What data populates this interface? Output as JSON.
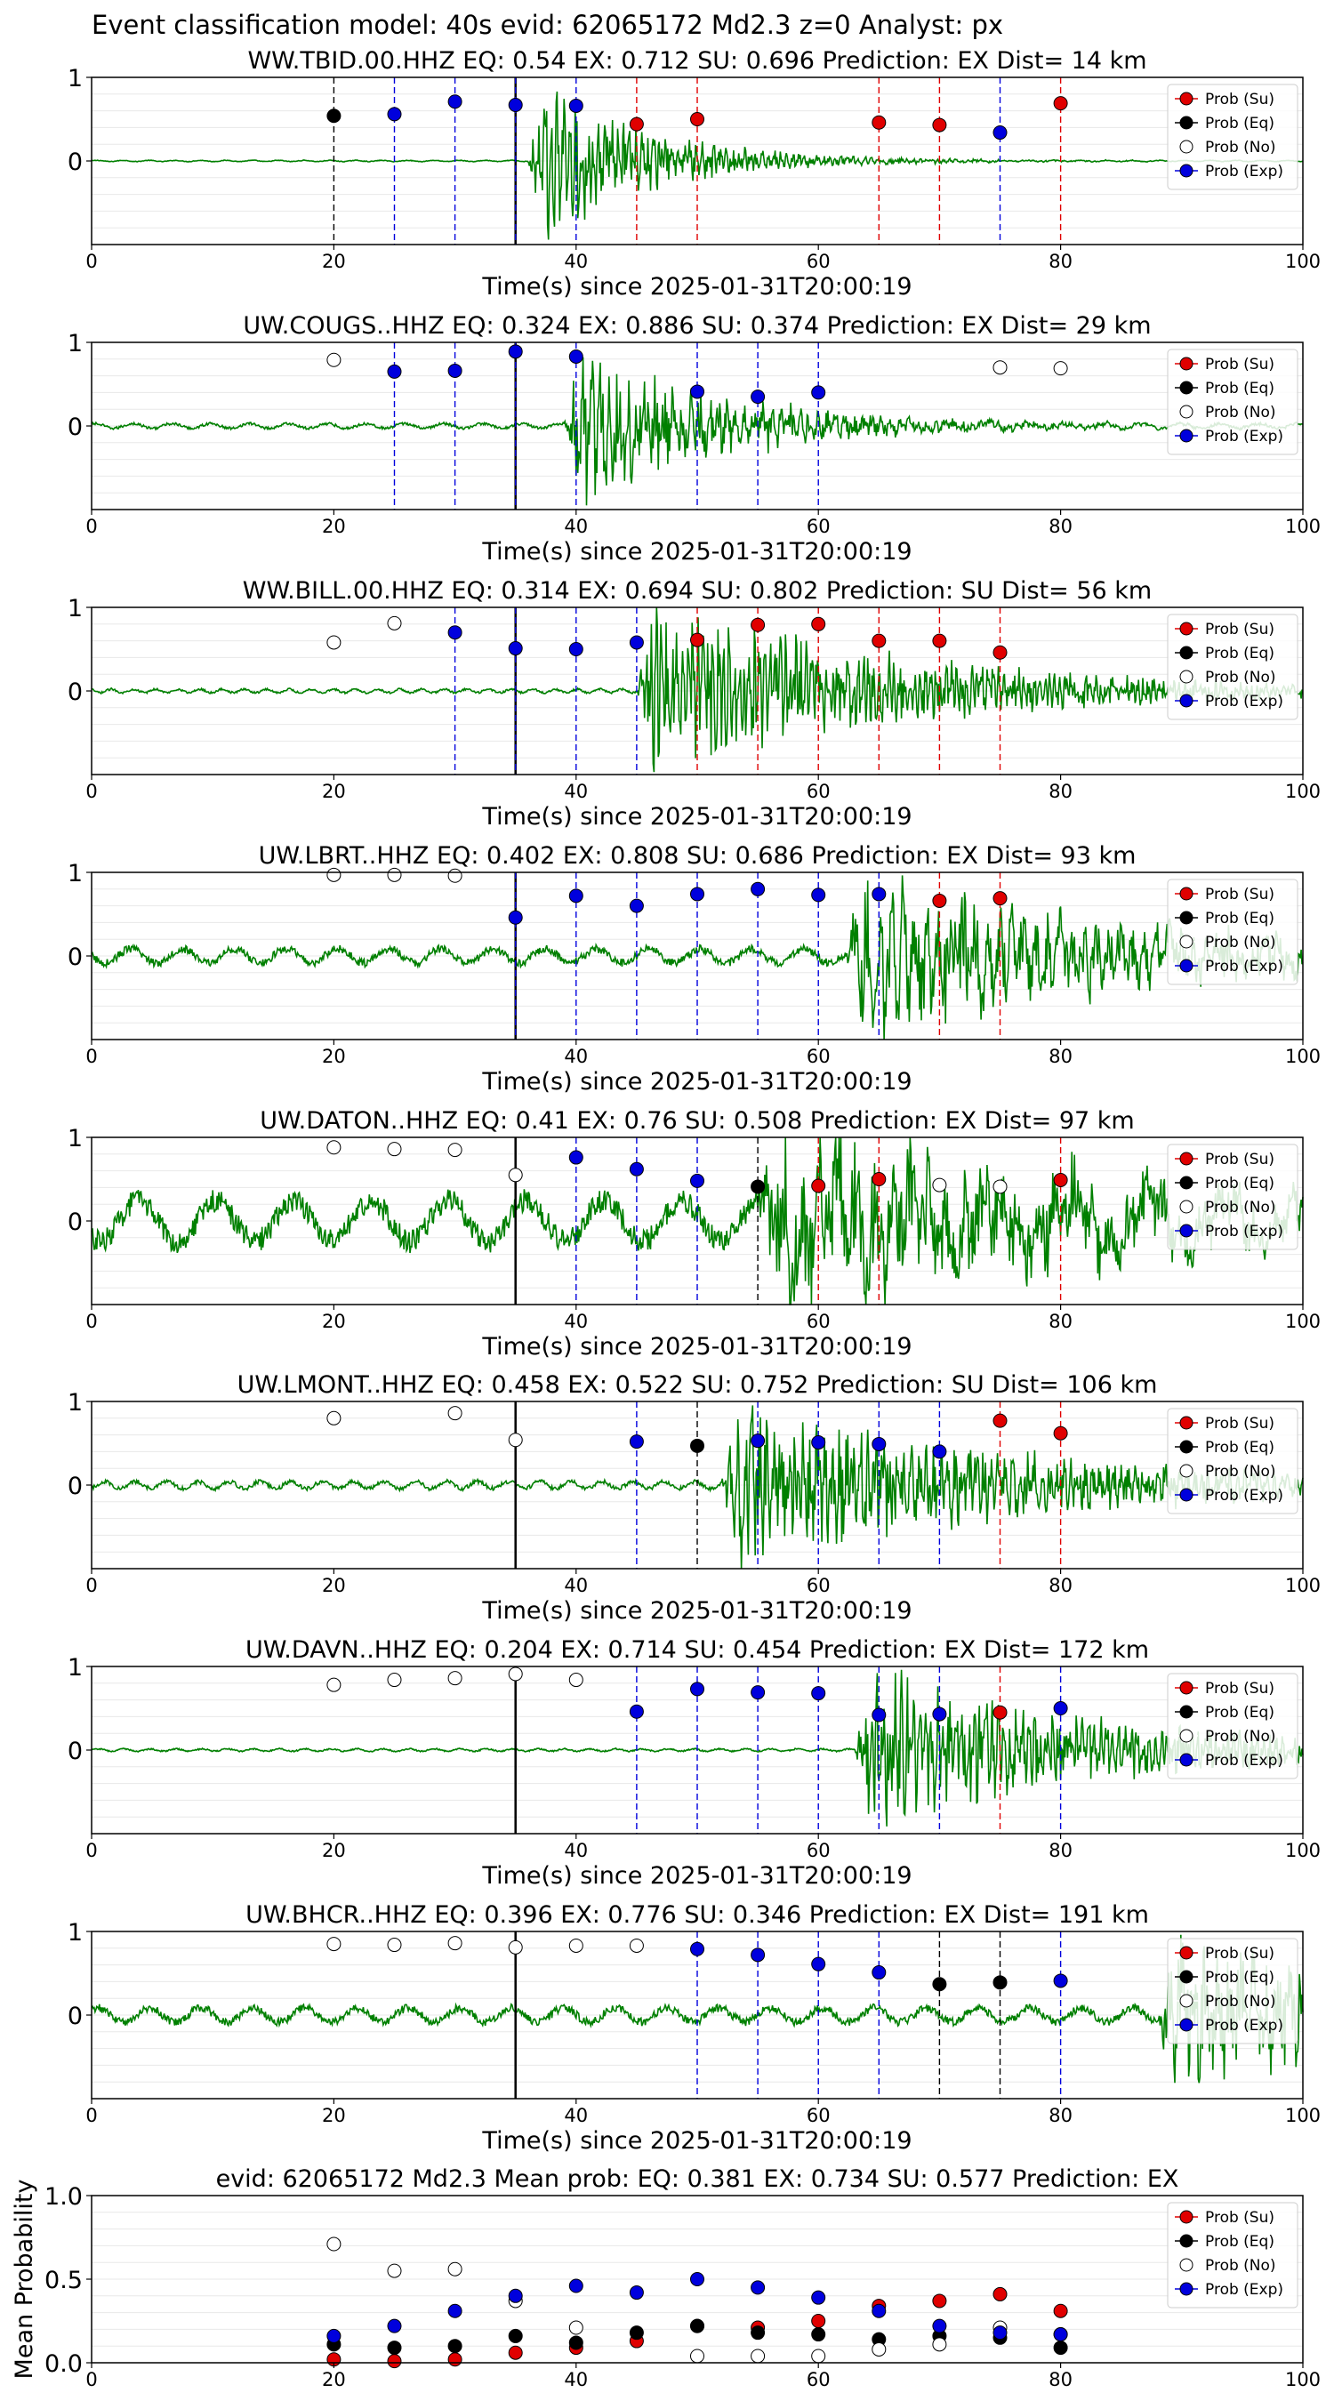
{
  "suptitle": "Event classification model: 40s evid: 62065172 Md2.3 z=0 Analyst: px",
  "legend_labels": [
    "Prob (Su)",
    "Prob (Eq)",
    "Prob (No)",
    "Prob (Exp)"
  ],
  "colors": {
    "su": "#e00000",
    "eq": "#000000",
    "no": "#ffffff",
    "exp": "#0000dd",
    "trace": "#008000"
  },
  "chart_data": [
    {
      "type": "scatter",
      "title": "WW.TBID.00.HHZ   EQ: 0.54  EX: 0.712  SU: 0.696   Prediction: EX    Dist= 14 km",
      "xlabel": "Time(s) since 2025-01-31T20:00:19",
      "ylabel": "",
      "xlim": [
        0,
        100
      ],
      "ylim": [
        -1,
        1
      ],
      "xticks": [
        "0",
        "20",
        "40",
        "60",
        "80",
        "100"
      ],
      "yticks": [
        "1",
        "0"
      ],
      "grid": true,
      "legend": "top-right",
      "trace": {
        "onset": 36,
        "noise": 0.01,
        "amp": 0.95,
        "decay": 9,
        "freq": 6
      },
      "picks": [
        [
          20,
          "eq",
          0.54
        ],
        [
          25,
          "exp",
          0.56
        ],
        [
          30,
          "exp",
          0.71
        ],
        [
          35,
          "exp",
          0.67
        ],
        [
          40,
          "exp",
          0.66
        ],
        [
          45,
          "su",
          0.44
        ],
        [
          50,
          "su",
          0.5
        ],
        [
          65,
          "su",
          0.46
        ],
        [
          70,
          "su",
          0.43
        ],
        [
          75,
          "exp",
          0.34
        ],
        [
          80,
          "su",
          0.69
        ]
      ]
    },
    {
      "type": "scatter",
      "title": "UW.COUGS..HHZ   EQ: 0.324  EX: 0.886  SU: 0.374   Prediction: EX    Dist= 29 km",
      "xlabel": "Time(s) since 2025-01-31T20:00:19",
      "ylabel": "",
      "xlim": [
        0,
        100
      ],
      "ylim": [
        -1,
        1
      ],
      "xticks": [
        "0",
        "20",
        "40",
        "60",
        "80",
        "100"
      ],
      "yticks": [
        "1",
        "0"
      ],
      "grid": true,
      "legend": "top-right",
      "trace": {
        "onset": 39,
        "noise": 0.04,
        "amp": 0.95,
        "decay": 12,
        "freq": 4
      },
      "picks": [
        [
          20,
          "no",
          0.79
        ],
        [
          25,
          "exp",
          0.65
        ],
        [
          30,
          "exp",
          0.66
        ],
        [
          35,
          "exp",
          0.89
        ],
        [
          40,
          "exp",
          0.83
        ],
        [
          50,
          "exp",
          0.41
        ],
        [
          55,
          "exp",
          0.35
        ],
        [
          60,
          "exp",
          0.4
        ],
        [
          75,
          "no",
          0.7
        ],
        [
          80,
          "no",
          0.69
        ]
      ]
    },
    {
      "type": "scatter",
      "title": "WW.BILL.00.HHZ   EQ: 0.314  EX: 0.694  SU: 0.802   Prediction: SU    Dist= 56 km",
      "xlabel": "Time(s) since 2025-01-31T20:00:19",
      "ylabel": "",
      "xlim": [
        0,
        100
      ],
      "ylim": [
        -1,
        1
      ],
      "xticks": [
        "0",
        "20",
        "40",
        "60",
        "80",
        "100"
      ],
      "yticks": [
        "1",
        "0"
      ],
      "grid": true,
      "legend": "top-right",
      "trace": {
        "onset": 45,
        "noise": 0.03,
        "amp": 0.95,
        "decay": 22,
        "freq": 7
      },
      "picks": [
        [
          20,
          "no",
          0.58
        ],
        [
          25,
          "no",
          0.81
        ],
        [
          30,
          "exp",
          0.7
        ],
        [
          35,
          "exp",
          0.51
        ],
        [
          40,
          "exp",
          0.5
        ],
        [
          45,
          "exp",
          0.58
        ],
        [
          50,
          "su",
          0.61
        ],
        [
          55,
          "su",
          0.79
        ],
        [
          60,
          "su",
          0.8
        ],
        [
          65,
          "su",
          0.6
        ],
        [
          70,
          "su",
          0.6
        ],
        [
          75,
          "su",
          0.46
        ]
      ]
    },
    {
      "type": "scatter",
      "title": "UW.LBRT..HHZ   EQ: 0.402  EX: 0.808  SU: 0.686   Prediction: EX    Dist= 93 km",
      "xlabel": "Time(s) since 2025-01-31T20:00:19",
      "ylabel": "",
      "xlim": [
        0,
        100
      ],
      "ylim": [
        -1,
        1
      ],
      "xticks": [
        "0",
        "20",
        "40",
        "60",
        "80",
        "100"
      ],
      "yticks": [
        "1",
        "0"
      ],
      "grid": true,
      "legend": "top-right",
      "trace": {
        "onset": 62,
        "noise": 0.12,
        "amp": 0.9,
        "decay": 25,
        "freq": 3
      },
      "picks": [
        [
          20,
          "no",
          0.97
        ],
        [
          25,
          "no",
          0.97
        ],
        [
          30,
          "no",
          0.96
        ],
        [
          35,
          "exp",
          0.46
        ],
        [
          40,
          "exp",
          0.72
        ],
        [
          45,
          "exp",
          0.6
        ],
        [
          50,
          "exp",
          0.74
        ],
        [
          55,
          "exp",
          0.8
        ],
        [
          60,
          "exp",
          0.73
        ],
        [
          65,
          "exp",
          0.74
        ],
        [
          70,
          "su",
          0.66
        ],
        [
          75,
          "su",
          0.69
        ]
      ]
    },
    {
      "type": "scatter",
      "title": "UW.DATON..HHZ   EQ: 0.41  EX: 0.76  SU: 0.508   Prediction: EX    Dist= 97 km",
      "xlabel": "Time(s) since 2025-01-31T20:00:19",
      "ylabel": "",
      "xlim": [
        0,
        100
      ],
      "ylim": [
        -1,
        1
      ],
      "xticks": [
        "0",
        "20",
        "40",
        "60",
        "80",
        "100"
      ],
      "yticks": [
        "1",
        "0"
      ],
      "grid": true,
      "legend": "top-right",
      "trace": {
        "onset": 55,
        "noise": 0.35,
        "amp": 0.95,
        "decay": 30,
        "freq": 2
      },
      "picks": [
        [
          20,
          "no",
          0.88
        ],
        [
          25,
          "no",
          0.86
        ],
        [
          30,
          "no",
          0.85
        ],
        [
          35,
          "no",
          0.55
        ],
        [
          40,
          "exp",
          0.76
        ],
        [
          45,
          "exp",
          0.62
        ],
        [
          50,
          "exp",
          0.48
        ],
        [
          55,
          "eq",
          0.41
        ],
        [
          60,
          "su",
          0.42
        ],
        [
          65,
          "su",
          0.5
        ],
        [
          70,
          "no",
          0.43
        ],
        [
          75,
          "no",
          0.41
        ],
        [
          80,
          "su",
          0.49
        ]
      ]
    },
    {
      "type": "scatter",
      "title": "UW.LMONT..HHZ   EQ: 0.458  EX: 0.522  SU: 0.752   Prediction: SU    Dist= 106 km",
      "xlabel": "Time(s) since 2025-01-31T20:00:19",
      "ylabel": "",
      "xlim": [
        0,
        100
      ],
      "ylim": [
        -1,
        1
      ],
      "xticks": [
        "0",
        "20",
        "40",
        "60",
        "80",
        "100"
      ],
      "yticks": [
        "1",
        "0"
      ],
      "grid": true,
      "legend": "top-right",
      "trace": {
        "onset": 52,
        "noise": 0.06,
        "amp": 0.9,
        "decay": 25,
        "freq": 5
      },
      "picks": [
        [
          20,
          "no",
          0.8
        ],
        [
          30,
          "no",
          0.86
        ],
        [
          35,
          "no",
          0.54
        ],
        [
          45,
          "exp",
          0.52
        ],
        [
          50,
          "eq",
          0.47
        ],
        [
          55,
          "exp",
          0.53
        ],
        [
          60,
          "exp",
          0.51
        ],
        [
          65,
          "exp",
          0.49
        ],
        [
          70,
          "exp",
          0.4
        ],
        [
          75,
          "su",
          0.77
        ],
        [
          80,
          "su",
          0.62
        ]
      ]
    },
    {
      "type": "scatter",
      "title": "UW.DAVN..HHZ   EQ: 0.204  EX: 0.714  SU: 0.454   Prediction: EX    Dist= 172 km",
      "xlabel": "Time(s) since 2025-01-31T20:00:19",
      "ylabel": "",
      "xlim": [
        0,
        100
      ],
      "ylim": [
        -1,
        1
      ],
      "xticks": [
        "0",
        "20",
        "40",
        "60",
        "80",
        "100"
      ],
      "yticks": [
        "1",
        "0"
      ],
      "grid": true,
      "legend": "top-right",
      "trace": {
        "onset": 63,
        "noise": 0.02,
        "amp": 0.9,
        "decay": 20,
        "freq": 6
      },
      "picks": [
        [
          20,
          "no",
          0.78
        ],
        [
          25,
          "no",
          0.84
        ],
        [
          30,
          "no",
          0.86
        ],
        [
          35,
          "no",
          0.91
        ],
        [
          40,
          "no",
          0.84
        ],
        [
          45,
          "exp",
          0.46
        ],
        [
          50,
          "exp",
          0.73
        ],
        [
          55,
          "exp",
          0.69
        ],
        [
          60,
          "exp",
          0.68
        ],
        [
          65,
          "exp",
          0.42
        ],
        [
          70,
          "exp",
          0.43
        ],
        [
          75,
          "su",
          0.45
        ],
        [
          80,
          "exp",
          0.5
        ]
      ]
    },
    {
      "type": "scatter",
      "title": "UW.BHCR..HHZ   EQ: 0.396  EX: 0.776  SU: 0.346   Prediction: EX    Dist= 191 km",
      "xlabel": "Time(s) since 2025-01-31T20:00:19",
      "ylabel": "",
      "xlim": [
        0,
        100
      ],
      "ylim": [
        -1,
        1
      ],
      "xticks": [
        "0",
        "20",
        "40",
        "60",
        "80",
        "100"
      ],
      "yticks": [
        "1",
        "0"
      ],
      "grid": true,
      "legend": "top-right",
      "trace": {
        "onset": 88,
        "noise": 0.12,
        "amp": 0.9,
        "decay": 20,
        "freq": 3
      },
      "picks": [
        [
          20,
          "no",
          0.85
        ],
        [
          25,
          "no",
          0.84
        ],
        [
          30,
          "no",
          0.86
        ],
        [
          35,
          "no",
          0.81
        ],
        [
          40,
          "no",
          0.83
        ],
        [
          45,
          "no",
          0.83
        ],
        [
          50,
          "exp",
          0.79
        ],
        [
          55,
          "exp",
          0.72
        ],
        [
          60,
          "exp",
          0.61
        ],
        [
          65,
          "exp",
          0.51
        ],
        [
          70,
          "eq",
          0.37
        ],
        [
          75,
          "eq",
          0.39
        ],
        [
          80,
          "exp",
          0.41
        ]
      ]
    },
    {
      "type": "scatter",
      "title": "evid: 62065172  Md2.3   Mean prob:    EQ: 0.381  EX: 0.734  SU: 0.577   Prediction: EX",
      "xlabel": "",
      "ylabel": "Mean Probability",
      "xlim": [
        0,
        100
      ],
      "ylim": [
        0,
        1
      ],
      "xticks": [
        "0",
        "20",
        "40",
        "60",
        "80",
        "100"
      ],
      "yticks": [
        "1.0",
        "0.5",
        "0.0"
      ],
      "grid": true,
      "legend": "top-right",
      "x": [
        20,
        25,
        30,
        35,
        40,
        45,
        50,
        55,
        60,
        65,
        70,
        75,
        80
      ],
      "series": [
        {
          "name": "Prob (Su)",
          "key": "su",
          "values": [
            0.02,
            0.01,
            0.02,
            0.06,
            0.09,
            0.13,
            0.22,
            0.21,
            0.25,
            0.34,
            0.37,
            0.41,
            0.31
          ]
        },
        {
          "name": "Prob (Eq)",
          "key": "eq",
          "values": [
            0.11,
            0.09,
            0.1,
            0.16,
            0.12,
            0.18,
            0.22,
            0.18,
            0.17,
            0.14,
            0.16,
            0.15,
            0.09
          ]
        },
        {
          "name": "Prob (No)",
          "key": "no",
          "values": [
            0.71,
            0.55,
            0.56,
            0.37,
            0.21,
            null,
            0.04,
            0.04,
            0.04,
            0.08,
            0.11,
            0.21,
            0.17
          ]
        },
        {
          "name": "Prob (Exp)",
          "key": "exp",
          "values": [
            0.16,
            0.22,
            0.31,
            0.4,
            0.46,
            0.42,
            0.5,
            0.45,
            0.39,
            0.31,
            0.22,
            0.18,
            0.17
          ]
        }
      ]
    }
  ]
}
